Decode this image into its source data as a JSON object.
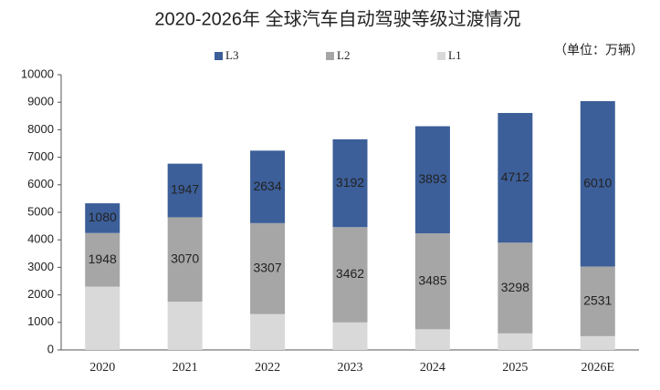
{
  "chart_data": {
    "type": "stacked_bar",
    "title": "2020-2026年 全球汽车自动驾驶等级过渡情况",
    "subtitle": "（单位：万辆）",
    "categories": [
      "2020",
      "2021",
      "2022",
      "2023",
      "2024",
      "2025",
      "2026E"
    ],
    "series": [
      {
        "name": "L1",
        "color": "#d9d9d9",
        "labels": false,
        "values": [
          2300,
          1750,
          1300,
          1000,
          750,
          600,
          500
        ]
      },
      {
        "name": "L2",
        "color": "#a6a6a6",
        "labels": true,
        "values": [
          1948,
          3070,
          3307,
          3462,
          3485,
          3298,
          2531
        ]
      },
      {
        "name": "L3",
        "color": "#3c5f99",
        "labels": true,
        "values": [
          1080,
          1947,
          2634,
          3192,
          3893,
          4712,
          6010
        ]
      }
    ],
    "ylim": [
      0,
      10000
    ],
    "yticks": [
      0,
      1000,
      2000,
      3000,
      4000,
      5000,
      6000,
      7000,
      8000,
      9000,
      10000
    ],
    "grid": false,
    "legend": "top"
  }
}
